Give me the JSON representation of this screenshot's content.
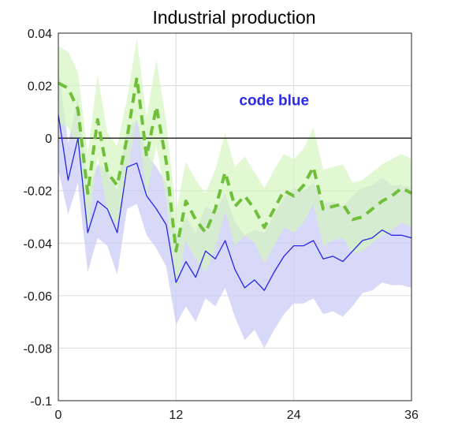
{
  "chart_data": {
    "type": "line",
    "title": "Industrial production",
    "xlabel": "",
    "ylabel": "",
    "xlim": [
      0,
      36
    ],
    "ylim": [
      -0.1,
      0.04
    ],
    "xticks": [
      0,
      12,
      24,
      36
    ],
    "xtick_labels": [
      "0",
      "12",
      "24",
      "36"
    ],
    "yticks": [
      0.04,
      0.02,
      0,
      -0.02,
      -0.04,
      -0.06,
      -0.08,
      -0.1
    ],
    "ytick_labels": [
      "0.04",
      "0.02",
      "0",
      "-0.02",
      "-0.04",
      "-0.06",
      "-0.08",
      "-0.1"
    ],
    "grid": true,
    "zero_line": true,
    "annotation": {
      "text": "code blue",
      "x": 22,
      "y": 0.0125,
      "color": "#2b2be8"
    },
    "x": [
      0,
      1,
      2,
      3,
      4,
      5,
      6,
      7,
      8,
      9,
      10,
      11,
      12,
      13,
      14,
      15,
      16,
      17,
      18,
      19,
      20,
      21,
      22,
      23,
      24,
      25,
      26,
      27,
      28,
      29,
      30,
      31,
      32,
      33,
      34,
      35,
      36
    ],
    "series": [
      {
        "style": "solid",
        "color": "#2626e6",
        "band_color": "#c8c8f5",
        "values": [
          0.009,
          -0.016,
          0.0,
          -0.036,
          -0.024,
          -0.027,
          -0.036,
          -0.011,
          -0.0095,
          -0.022,
          -0.027,
          -0.033,
          -0.055,
          -0.047,
          -0.053,
          -0.043,
          -0.046,
          -0.039,
          -0.05,
          -0.057,
          -0.054,
          -0.058,
          -0.051,
          -0.045,
          -0.041,
          -0.041,
          -0.039,
          -0.046,
          -0.045,
          -0.047,
          -0.043,
          -0.039,
          -0.038,
          -0.035,
          -0.037,
          -0.037,
          -0.038
        ],
        "lower": [
          -0.012,
          -0.029,
          -0.017,
          -0.051,
          -0.038,
          -0.041,
          -0.052,
          -0.027,
          -0.025,
          -0.037,
          -0.042,
          -0.049,
          -0.071,
          -0.064,
          -0.07,
          -0.061,
          -0.064,
          -0.057,
          -0.068,
          -0.077,
          -0.073,
          -0.08,
          -0.073,
          -0.067,
          -0.063,
          -0.063,
          -0.061,
          -0.067,
          -0.066,
          -0.068,
          -0.064,
          -0.059,
          -0.058,
          -0.055,
          -0.056,
          -0.056,
          -0.057
        ],
        "upper": [
          0.028,
          -0.002,
          0.016,
          -0.021,
          -0.01,
          -0.012,
          -0.02,
          0.004,
          0.007,
          -0.006,
          -0.011,
          -0.017,
          -0.038,
          -0.03,
          -0.036,
          -0.026,
          -0.028,
          -0.021,
          -0.032,
          -0.037,
          -0.035,
          -0.036,
          -0.029,
          -0.023,
          -0.019,
          -0.02,
          -0.017,
          -0.025,
          -0.024,
          -0.026,
          -0.022,
          -0.019,
          -0.018,
          -0.015,
          -0.018,
          -0.018,
          -0.019
        ]
      },
      {
        "style": "dashed",
        "color": "#6fbf3a",
        "band_color": "#d4f5c0",
        "values": [
          0.021,
          0.019,
          0.011,
          -0.021,
          0.007,
          -0.013,
          -0.018,
          0.0,
          0.023,
          -0.007,
          0.012,
          -0.009,
          -0.043,
          -0.024,
          -0.031,
          -0.036,
          -0.027,
          -0.013,
          -0.026,
          -0.022,
          -0.027,
          -0.034,
          -0.027,
          -0.02,
          -0.022,
          -0.018,
          -0.011,
          -0.027,
          -0.026,
          -0.025,
          -0.031,
          -0.03,
          -0.027,
          -0.024,
          -0.022,
          -0.019,
          -0.021
        ],
        "lower": [
          0.006,
          0.004,
          -0.003,
          -0.036,
          -0.007,
          -0.028,
          -0.033,
          -0.015,
          0.008,
          -0.022,
          -0.003,
          -0.024,
          -0.058,
          -0.039,
          -0.046,
          -0.051,
          -0.042,
          -0.028,
          -0.041,
          -0.037,
          -0.04,
          -0.048,
          -0.041,
          -0.034,
          -0.036,
          -0.032,
          -0.025,
          -0.041,
          -0.039,
          -0.038,
          -0.044,
          -0.043,
          -0.04,
          -0.037,
          -0.035,
          -0.032,
          -0.034
        ],
        "upper": [
          0.035,
          0.033,
          0.025,
          -0.006,
          0.024,
          0.002,
          -0.003,
          0.015,
          0.038,
          0.008,
          0.03,
          0.006,
          -0.028,
          -0.009,
          -0.016,
          -0.021,
          -0.012,
          0.002,
          -0.011,
          -0.007,
          -0.013,
          -0.019,
          -0.012,
          -0.006,
          -0.008,
          -0.004,
          0.004,
          -0.012,
          -0.011,
          -0.01,
          -0.017,
          -0.016,
          -0.013,
          -0.01,
          -0.008,
          -0.006,
          -0.008
        ]
      }
    ]
  }
}
